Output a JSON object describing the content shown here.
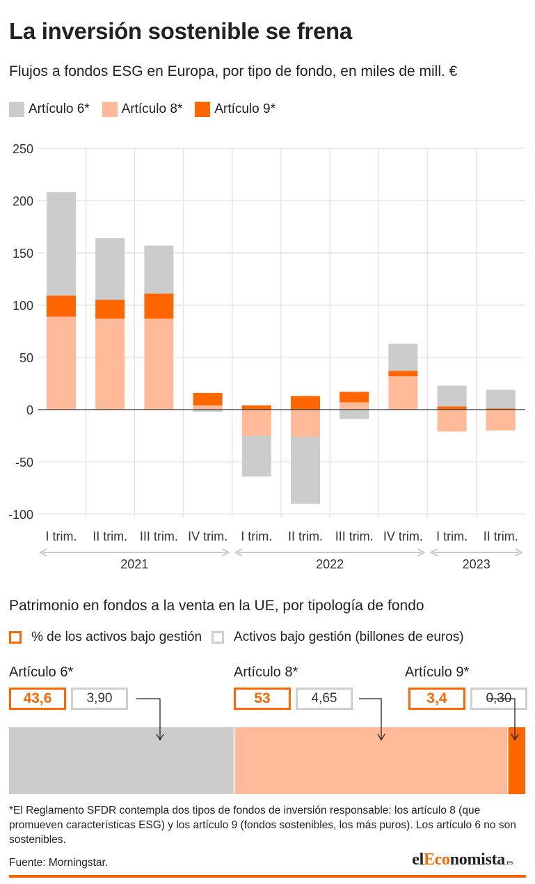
{
  "title": "La inversión sostenible se frena",
  "subtitle": "Flujos a fondos ESG en Europa, por tipo de fondo, en miles de mill. €",
  "colors": {
    "art6": "#cccccc",
    "art8": "#ffbb99",
    "art9": "#ff6600",
    "grid": "#e6e6e6",
    "axis": "#9a9a9a"
  },
  "legend": [
    {
      "label": "Artículo 6*",
      "color": "#cccccc"
    },
    {
      "label": "Artículo 8*",
      "color": "#ffbb99"
    },
    {
      "label": "Artículo 9*",
      "color": "#ff6600"
    }
  ],
  "chart_data": [
    {
      "type": "bar",
      "stacked": true,
      "ylim": [
        -100,
        250
      ],
      "yticks": [
        250,
        200,
        150,
        100,
        50,
        0,
        -50,
        -100
      ],
      "grid": true,
      "categories": [
        "I trim.",
        "II trim.",
        "III trim.",
        "IV trim.",
        "I trim.",
        "II trim.",
        "III trim.",
        "IV trim.",
        "I trim.",
        "II trim."
      ],
      "years": [
        {
          "label": "2021",
          "from": 0,
          "to": 3
        },
        {
          "label": "2022",
          "from": 4,
          "to": 7
        },
        {
          "label": "2023",
          "from": 8,
          "to": 9
        }
      ],
      "series": [
        {
          "name": "Artículo 8*",
          "color": "#ffbb99",
          "values": [
            89,
            87,
            87,
            4,
            -25,
            -26,
            7,
            32,
            -21,
            -20
          ]
        },
        {
          "name": "Artículo 9*",
          "color": "#ff6600",
          "values": [
            20,
            18,
            24,
            12,
            4,
            13,
            10,
            5,
            3,
            1
          ]
        },
        {
          "name": "Artículo 6*",
          "color": "#cccccc",
          "values": [
            99,
            59,
            46,
            -2,
            -39,
            -64,
            -9,
            26,
            20,
            18
          ]
        }
      ]
    },
    {
      "type": "bar",
      "stacked": true,
      "orientation": "horizontal",
      "title": "Patrimonio en fondos a la venta en la UE, por tipología de fondo",
      "legend": [
        "% de los activos bajo gestión",
        "Activos bajo gestión (billones de euros)"
      ],
      "groups": [
        {
          "name": "Artículo 6*",
          "pct": 43.6,
          "pct_label": "43,6",
          "assets": 3.9,
          "assets_label": "3,90",
          "color": "#cccccc"
        },
        {
          "name": "Artículo 8*",
          "pct": 53,
          "pct_label": "53",
          "assets": 4.65,
          "assets_label": "4,65",
          "color": "#ffbb99"
        },
        {
          "name": "Artículo 9*",
          "pct": 3.4,
          "pct_label": "3,4",
          "assets": 0.3,
          "assets_label": "0,30",
          "color": "#ff6600"
        }
      ]
    }
  ],
  "footnote": "*El Reglamento SFDR contempla dos tipos de fondos de inversión responsable: los artículo 8 (que promueven características ESG) y los artículo 9 (fondos sostenibles, los más puros). Los artículo 6 no son sostenibles.",
  "source": "Fuente: Morningstar.",
  "brand": {
    "pre": "el",
    "mid": "Eco",
    "post": "nomista",
    "suffix": ".es"
  }
}
